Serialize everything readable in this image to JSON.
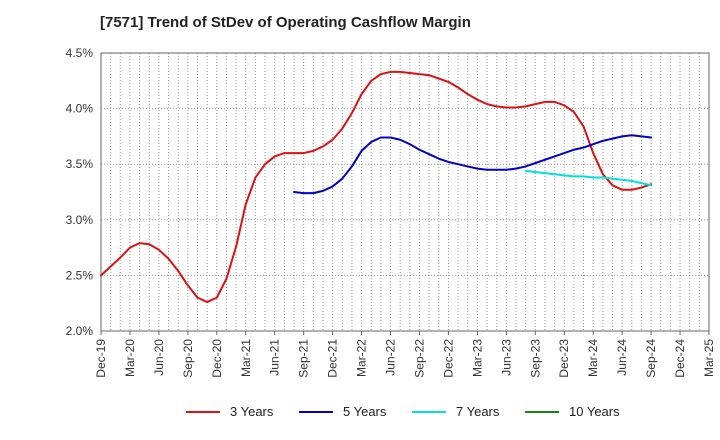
{
  "chart_data": {
    "type": "line",
    "title": "[7571]  Trend of StDev of Operating Cashflow Margin",
    "ylim": [
      2.0,
      4.5
    ],
    "y_ticks": [
      "2.0%",
      "2.5%",
      "3.0%",
      "3.5%",
      "4.0%",
      "4.5%"
    ],
    "x_ticks": [
      "Dec-19",
      "Mar-20",
      "Jun-20",
      "Sep-20",
      "Dec-20",
      "Mar-21",
      "Jun-21",
      "Sep-21",
      "Dec-21",
      "Mar-22",
      "Jun-22",
      "Sep-22",
      "Dec-22",
      "Mar-23",
      "Jun-23",
      "Sep-23",
      "Dec-23",
      "Mar-24",
      "Jun-24",
      "Sep-24",
      "Dec-24",
      "Mar-25"
    ],
    "x_range": [
      "2019-12",
      "2025-03"
    ],
    "grid": true,
    "legend_position": "bottom",
    "series": [
      {
        "name": "3 Years",
        "color": "#dd1111",
        "points": [
          [
            "2019-12",
            2.5
          ],
          [
            "2020-01",
            2.58
          ],
          [
            "2020-02",
            2.66
          ],
          [
            "2020-03",
            2.75
          ],
          [
            "2020-04",
            2.79
          ],
          [
            "2020-05",
            2.78
          ],
          [
            "2020-06",
            2.73
          ],
          [
            "2020-07",
            2.65
          ],
          [
            "2020-08",
            2.54
          ],
          [
            "2020-09",
            2.41
          ],
          [
            "2020-10",
            2.3
          ],
          [
            "2020-11",
            2.26
          ],
          [
            "2020-12",
            2.3
          ],
          [
            "2021-01",
            2.47
          ],
          [
            "2021-02",
            2.76
          ],
          [
            "2021-03",
            3.14
          ],
          [
            "2021-04",
            3.38
          ],
          [
            "2021-05",
            3.5
          ],
          [
            "2021-06",
            3.57
          ],
          [
            "2021-07",
            3.6
          ],
          [
            "2021-08",
            3.6
          ],
          [
            "2021-09",
            3.6
          ],
          [
            "2021-10",
            3.62
          ],
          [
            "2021-11",
            3.66
          ],
          [
            "2021-12",
            3.72
          ],
          [
            "2022-01",
            3.82
          ],
          [
            "2022-02",
            3.96
          ],
          [
            "2022-03",
            4.13
          ],
          [
            "2022-04",
            4.25
          ],
          [
            "2022-05",
            4.31
          ],
          [
            "2022-06",
            4.33
          ],
          [
            "2022-07",
            4.33
          ],
          [
            "2022-08",
            4.32
          ],
          [
            "2022-09",
            4.31
          ],
          [
            "2022-10",
            4.3
          ],
          [
            "2022-11",
            4.27
          ],
          [
            "2022-12",
            4.24
          ],
          [
            "2023-01",
            4.19
          ],
          [
            "2023-02",
            4.13
          ],
          [
            "2023-03",
            4.08
          ],
          [
            "2023-04",
            4.04
          ],
          [
            "2023-05",
            4.02
          ],
          [
            "2023-06",
            4.01
          ],
          [
            "2023-07",
            4.01
          ],
          [
            "2023-08",
            4.02
          ],
          [
            "2023-09",
            4.04
          ],
          [
            "2023-10",
            4.06
          ],
          [
            "2023-11",
            4.06
          ],
          [
            "2023-12",
            4.03
          ],
          [
            "2024-01",
            3.97
          ],
          [
            "2024-02",
            3.84
          ],
          [
            "2024-03",
            3.6
          ],
          [
            "2024-04",
            3.41
          ],
          [
            "2024-05",
            3.31
          ],
          [
            "2024-06",
            3.27
          ],
          [
            "2024-07",
            3.27
          ],
          [
            "2024-08",
            3.29
          ],
          [
            "2024-09",
            3.32
          ]
        ]
      },
      {
        "name": "5 Years",
        "color": "#0000cc",
        "points": [
          [
            "2021-08",
            3.25
          ],
          [
            "2021-09",
            3.24
          ],
          [
            "2021-10",
            3.24
          ],
          [
            "2021-11",
            3.26
          ],
          [
            "2021-12",
            3.3
          ],
          [
            "2022-01",
            3.37
          ],
          [
            "2022-02",
            3.48
          ],
          [
            "2022-03",
            3.62
          ],
          [
            "2022-04",
            3.7
          ],
          [
            "2022-05",
            3.74
          ],
          [
            "2022-06",
            3.74
          ],
          [
            "2022-07",
            3.72
          ],
          [
            "2022-08",
            3.68
          ],
          [
            "2022-09",
            3.63
          ],
          [
            "2022-10",
            3.59
          ],
          [
            "2022-11",
            3.55
          ],
          [
            "2022-12",
            3.52
          ],
          [
            "2023-01",
            3.5
          ],
          [
            "2023-02",
            3.48
          ],
          [
            "2023-03",
            3.46
          ],
          [
            "2023-04",
            3.45
          ],
          [
            "2023-05",
            3.45
          ],
          [
            "2023-06",
            3.45
          ],
          [
            "2023-07",
            3.46
          ],
          [
            "2023-08",
            3.48
          ],
          [
            "2023-09",
            3.51
          ],
          [
            "2023-10",
            3.54
          ],
          [
            "2023-11",
            3.57
          ],
          [
            "2023-12",
            3.6
          ],
          [
            "2024-01",
            3.63
          ],
          [
            "2024-02",
            3.65
          ],
          [
            "2024-03",
            3.68
          ],
          [
            "2024-04",
            3.71
          ],
          [
            "2024-05",
            3.73
          ],
          [
            "2024-06",
            3.75
          ],
          [
            "2024-07",
            3.76
          ],
          [
            "2024-08",
            3.75
          ],
          [
            "2024-09",
            3.74
          ]
        ]
      },
      {
        "name": "7 Years",
        "color": "#00e0e0",
        "points": [
          [
            "2023-08",
            3.44
          ],
          [
            "2023-09",
            3.43
          ],
          [
            "2023-10",
            3.42
          ],
          [
            "2023-11",
            3.41
          ],
          [
            "2023-12",
            3.4
          ],
          [
            "2024-01",
            3.39
          ],
          [
            "2024-02",
            3.39
          ],
          [
            "2024-03",
            3.38
          ],
          [
            "2024-04",
            3.38
          ],
          [
            "2024-05",
            3.37
          ],
          [
            "2024-06",
            3.36
          ],
          [
            "2024-07",
            3.35
          ],
          [
            "2024-08",
            3.33
          ],
          [
            "2024-09",
            3.31
          ]
        ]
      },
      {
        "name": "10 Years",
        "color": "#118811",
        "points": []
      }
    ]
  }
}
